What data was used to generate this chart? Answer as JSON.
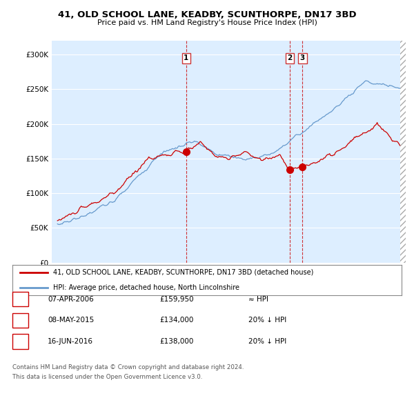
{
  "title": "41, OLD SCHOOL LANE, KEADBY, SCUNTHORPE, DN17 3BD",
  "subtitle": "Price paid vs. HM Land Registry's House Price Index (HPI)",
  "ylim": [
    0,
    320000
  ],
  "yticks": [
    0,
    50000,
    100000,
    150000,
    200000,
    250000,
    300000
  ],
  "ytick_labels": [
    "£0",
    "£50K",
    "£100K",
    "£150K",
    "£200K",
    "£250K",
    "£300K"
  ],
  "background_color": "#ffffff",
  "chart_bg_color": "#ddeeff",
  "grid_color": "#ffffff",
  "legend_label_red": "41, OLD SCHOOL LANE, KEADBY, SCUNTHORPE, DN17 3BD (detached house)",
  "legend_label_blue": "HPI: Average price, detached house, North Lincolnshire",
  "red_color": "#cc0000",
  "blue_color": "#6699cc",
  "sale_points": [
    {
      "label": "1",
      "year": 2006.27,
      "value": 159950
    },
    {
      "label": "2",
      "year": 2015.36,
      "value": 134000
    },
    {
      "label": "3",
      "year": 2016.46,
      "value": 138000
    }
  ],
  "table_rows": [
    {
      "num": "1",
      "date": "07-APR-2006",
      "price": "£159,950",
      "hpi": "≈ HPI"
    },
    {
      "num": "2",
      "date": "08-MAY-2015",
      "price": "£134,000",
      "hpi": "20% ↓ HPI"
    },
    {
      "num": "3",
      "date": "16-JUN-2016",
      "price": "£138,000",
      "hpi": "20% ↓ HPI"
    }
  ],
  "footnote1": "Contains HM Land Registry data © Crown copyright and database right 2024.",
  "footnote2": "This data is licensed under the Open Government Licence v3.0."
}
